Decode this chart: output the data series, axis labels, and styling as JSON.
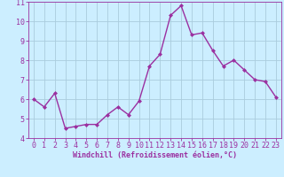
{
  "x": [
    0,
    1,
    2,
    3,
    4,
    5,
    6,
    7,
    8,
    9,
    10,
    11,
    12,
    13,
    14,
    15,
    16,
    17,
    18,
    19,
    20,
    21,
    22,
    23
  ],
  "y": [
    6.0,
    5.6,
    6.3,
    4.5,
    4.6,
    4.7,
    4.7,
    5.2,
    5.6,
    5.2,
    5.9,
    7.7,
    8.3,
    10.3,
    10.8,
    9.3,
    9.4,
    8.5,
    7.7,
    8.0,
    7.5,
    7.0,
    6.9,
    6.1
  ],
  "line_color": "#9B30A0",
  "marker": "D",
  "marker_size": 2.0,
  "bg_color": "#cceeff",
  "grid_color": "#aaccdd",
  "xlabel": "Windchill (Refroidissement éolien,°C)",
  "ylim": [
    4,
    11
  ],
  "xlim": [
    -0.5,
    23.5
  ],
  "yticks": [
    4,
    5,
    6,
    7,
    8,
    9,
    10,
    11
  ],
  "xticks": [
    0,
    1,
    2,
    3,
    4,
    5,
    6,
    7,
    8,
    9,
    10,
    11,
    12,
    13,
    14,
    15,
    16,
    17,
    18,
    19,
    20,
    21,
    22,
    23
  ],
  "xlabel_fontsize": 6.0,
  "tick_fontsize": 6.0,
  "line_width": 1.0
}
